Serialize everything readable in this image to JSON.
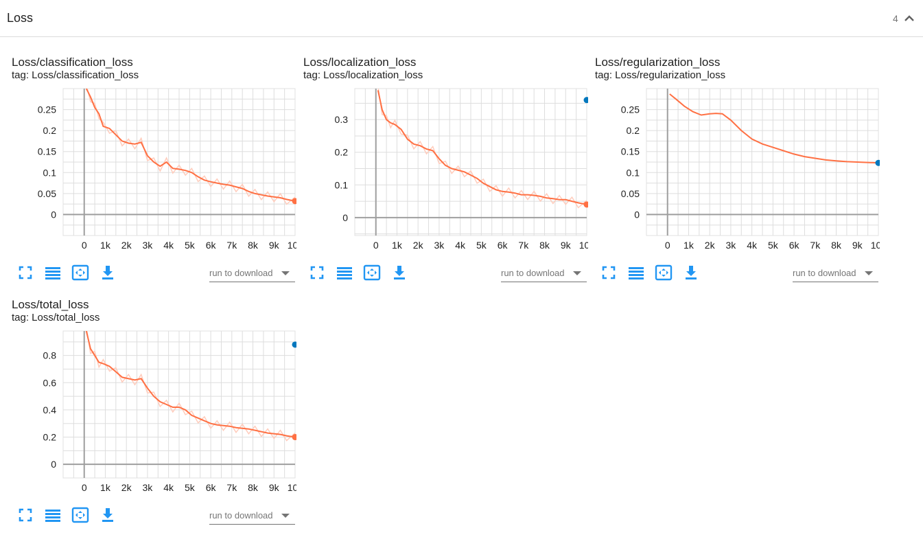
{
  "section": {
    "title": "Loss",
    "count": "4",
    "collapse_icon": "chevron-up-icon"
  },
  "colors": {
    "line": "#ff7043",
    "smooth_raw": "#ffccbc",
    "marker_blue": "#0277bd",
    "tool_icon": "#2196f3"
  },
  "toolbar": {
    "icons": [
      "fullscreen-icon",
      "toggle-log-scale-icon",
      "fit-domain-icon",
      "download-icon"
    ],
    "run_select_placeholder": "run to download"
  },
  "cards": [
    {
      "title": "Loss/classification_loss",
      "tag": "tag: Loss/classification_loss",
      "chart_data": {
        "type": "line",
        "x_ticks": [
          "0",
          "1k",
          "2k",
          "3k",
          "4k",
          "5k",
          "6k",
          "7k",
          "8k",
          "9k",
          "10k"
        ],
        "y_ticks": [
          "0",
          "0.05",
          "0.1",
          "0.15",
          "0.2",
          "0.25"
        ],
        "xlim": [
          -1000,
          10000
        ],
        "ylim": [
          -0.05,
          0.3
        ],
        "series": [
          {
            "x": [
              100,
              300,
              500,
              700,
              900,
              1200,
              1500,
              1800,
              2100,
              2400,
              2700,
              3000,
              3300,
              3600,
              3900,
              4200,
              4500,
              4800,
              5100,
              5400,
              5700,
              6000,
              6300,
              6600,
              6900,
              7200,
              7500,
              7800,
              8100,
              8400,
              8700,
              9000,
              9300,
              9600,
              10000
            ],
            "y": [
              0.3,
              0.28,
              0.255,
              0.24,
              0.21,
              0.205,
              0.19,
              0.175,
              0.17,
              0.168,
              0.172,
              0.14,
              0.125,
              0.115,
              0.125,
              0.11,
              0.108,
              0.105,
              0.1,
              0.09,
              0.082,
              0.078,
              0.075,
              0.072,
              0.07,
              0.066,
              0.062,
              0.055,
              0.05,
              0.047,
              0.044,
              0.042,
              0.04,
              0.036,
              0.032
            ]
          }
        ],
        "end_marker": {
          "x": 10000,
          "y": 0.032,
          "color": "#ff7043"
        }
      }
    },
    {
      "title": "Loss/localization_loss",
      "tag": "tag: Loss/localization_loss",
      "chart_data": {
        "type": "line",
        "x_ticks": [
          "0",
          "1k",
          "2k",
          "3k",
          "4k",
          "5k",
          "6k",
          "7k",
          "8k",
          "9k",
          "10k"
        ],
        "y_ticks": [
          "0",
          "0.1",
          "0.2",
          "0.3"
        ],
        "xlim": [
          -1000,
          10000
        ],
        "ylim": [
          -0.055,
          0.395
        ],
        "series": [
          {
            "x": [
              100,
              300,
              500,
              700,
              900,
              1200,
              1500,
              1800,
              2100,
              2400,
              2700,
              3000,
              3300,
              3600,
              3900,
              4200,
              4500,
              4800,
              5100,
              5400,
              5700,
              6000,
              6300,
              6600,
              6900,
              7200,
              7500,
              7800,
              8100,
              8400,
              8700,
              9000,
              9300,
              9600,
              10000
            ],
            "y": [
              0.39,
              0.33,
              0.3,
              0.29,
              0.285,
              0.27,
              0.24,
              0.225,
              0.22,
              0.21,
              0.205,
              0.18,
              0.16,
              0.15,
              0.145,
              0.14,
              0.13,
              0.12,
              0.105,
              0.095,
              0.085,
              0.08,
              0.078,
              0.075,
              0.07,
              0.07,
              0.068,
              0.065,
              0.06,
              0.058,
              0.055,
              0.055,
              0.05,
              0.045,
              0.04
            ]
          }
        ],
        "end_marker": {
          "x": 10000,
          "y": 0.04,
          "color": "#ff7043"
        },
        "extra_marker": {
          "x": 10000,
          "y": 0.36,
          "color": "#0277bd"
        }
      }
    },
    {
      "title": "Loss/regularization_loss",
      "tag": "tag: Loss/regularization_loss",
      "chart_data": {
        "type": "line",
        "x_ticks": [
          "0",
          "1k",
          "2k",
          "3k",
          "4k",
          "5k",
          "6k",
          "7k",
          "8k",
          "9k",
          "10k"
        ],
        "y_ticks": [
          "0",
          "0.05",
          "0.1",
          "0.15",
          "0.2",
          "0.25"
        ],
        "xlim": [
          -1000,
          10000
        ],
        "ylim": [
          -0.05,
          0.3
        ],
        "series": [
          {
            "x": [
              100,
              400,
              800,
              1200,
              1600,
              2000,
              2300,
              2600,
              3000,
              3500,
              4000,
              4500,
              5000,
              5500,
              6000,
              6500,
              7000,
              7500,
              8000,
              8500,
              9000,
              9500,
              10000
            ],
            "y": [
              0.287,
              0.275,
              0.258,
              0.245,
              0.237,
              0.24,
              0.241,
              0.24,
              0.225,
              0.2,
              0.18,
              0.168,
              0.16,
              0.152,
              0.144,
              0.138,
              0.134,
              0.13,
              0.128,
              0.126,
              0.125,
              0.124,
              0.123
            ]
          }
        ],
        "end_marker": {
          "x": 10000,
          "y": 0.123,
          "color": "#0277bd"
        }
      }
    },
    {
      "title": "Loss/total_loss",
      "tag": "tag: Loss/total_loss",
      "chart_data": {
        "type": "line",
        "x_ticks": [
          "0",
          "1k",
          "2k",
          "3k",
          "4k",
          "5k",
          "6k",
          "7k",
          "8k",
          "9k",
          "10k"
        ],
        "y_ticks": [
          "0",
          "0.2",
          "0.4",
          "0.6",
          "0.8"
        ],
        "xlim": [
          -1000,
          10000
        ],
        "ylim": [
          -0.1,
          0.98
        ],
        "series": [
          {
            "x": [
              100,
              300,
              500,
              700,
              900,
              1200,
              1500,
              1800,
              2100,
              2400,
              2700,
              3000,
              3300,
              3600,
              3900,
              4200,
              4500,
              4800,
              5100,
              5400,
              5700,
              6000,
              6300,
              6600,
              6900,
              7200,
              7500,
              7800,
              8100,
              8400,
              8700,
              9000,
              9300,
              9600,
              10000
            ],
            "y": [
              0.98,
              0.85,
              0.8,
              0.75,
              0.74,
              0.72,
              0.68,
              0.64,
              0.63,
              0.62,
              0.63,
              0.56,
              0.5,
              0.46,
              0.44,
              0.42,
              0.42,
              0.4,
              0.36,
              0.34,
              0.32,
              0.3,
              0.29,
              0.285,
              0.28,
              0.27,
              0.265,
              0.26,
              0.25,
              0.24,
              0.23,
              0.225,
              0.22,
              0.21,
              0.2
            ]
          }
        ],
        "end_marker": {
          "x": 10000,
          "y": 0.2,
          "color": "#ff7043"
        },
        "extra_marker": {
          "x": 10000,
          "y": 0.88,
          "color": "#0277bd"
        }
      }
    }
  ]
}
